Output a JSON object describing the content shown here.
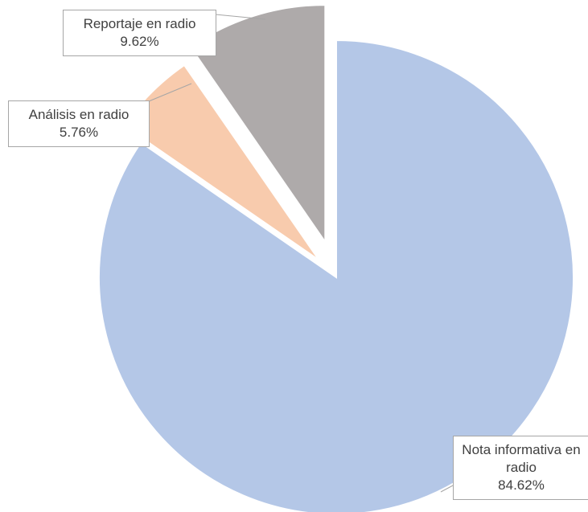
{
  "chart_data": {
    "type": "pie",
    "categories": [
      "Nota informativa en radio",
      "Análisis en radio",
      "Reportaje en radio"
    ],
    "values": [
      84.62,
      5.76,
      9.62
    ],
    "value_labels": [
      "84.62%",
      "5.76%",
      "9.62%"
    ],
    "colors": [
      "#b4c7e7",
      "#f8cbad",
      "#aeaaaa"
    ]
  }
}
